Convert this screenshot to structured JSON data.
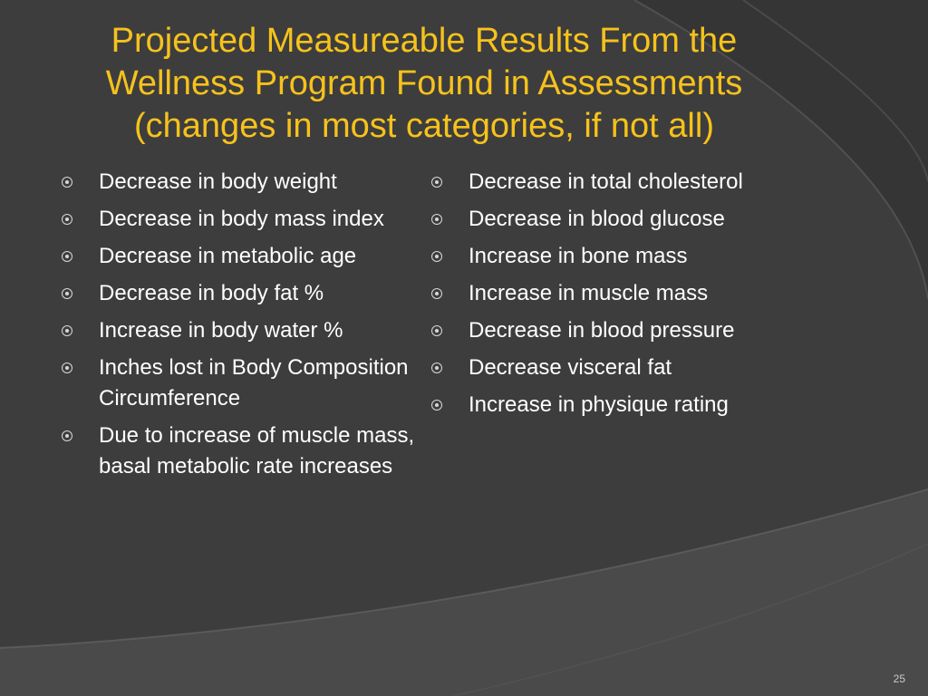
{
  "slide": {
    "title_lines": [
      "Projected Measureable Results From the",
      "Wellness Program Found in Assessments",
      "(changes in most categories, if not all)"
    ],
    "left_items": [
      "Decrease in body weight",
      "Decrease in body mass index",
      "Decrease in metabolic age",
      "Decrease in body fat %",
      "Increase in body water %",
      "Inches lost in Body Composition Circumference",
      "Due to increase of muscle mass, basal metabolic rate increases"
    ],
    "right_items": [
      "Decrease in total cholesterol",
      "Decrease in blood glucose",
      "Increase in bone mass",
      "Increase in muscle mass",
      "Decrease in blood pressure",
      "Decrease visceral fat",
      "Increase in physique rating"
    ],
    "slide_number": "25",
    "bullet_icon": "circled-dot-icon"
  },
  "colors": {
    "background": "#3d3d3d",
    "title": "#f6c21c",
    "body_text": "#ffffff",
    "bullet": "#d8d8d8"
  }
}
